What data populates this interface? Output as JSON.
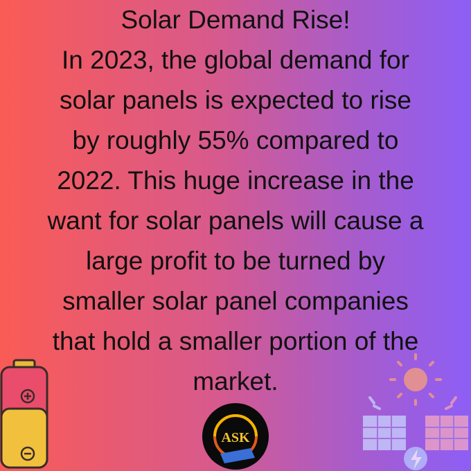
{
  "title": "Solar Demand Rise!",
  "body_lines": [
    "In 2023, the global demand for",
    "solar panels is expected to rise",
    "by roughly 55% compared to",
    "2022. This huge increase in the",
    "want for solar panels will cause a",
    "large profit to be turned by",
    "smaller solar panel companies",
    "that hold a smaller portion of the",
    "market."
  ],
  "logo": {
    "text": "ASK"
  }
}
